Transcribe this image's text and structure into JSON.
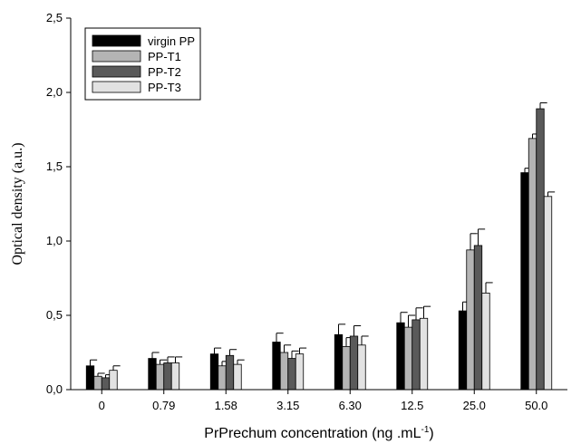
{
  "chart_data": {
    "type": "bar",
    "xlabel": "PrPrechum concentration (ng .mL",
    "xlabel_sup": "-1",
    "xlabel_end": ")",
    "ylabel": "Optical density (a.u.)",
    "ylim": [
      0,
      2.5
    ],
    "yticks": [
      "0,0",
      "0,5",
      "1,0",
      "1,5",
      "2,0",
      "2,5"
    ],
    "ytick_values": [
      0,
      0.5,
      1.0,
      1.5,
      2.0,
      2.5
    ],
    "categories": [
      "0",
      "0.79",
      "1.58",
      "3.15",
      "6.30",
      "12.5",
      "25.0",
      "50.0"
    ],
    "legend_position": "top-left",
    "grid": false,
    "series": [
      {
        "name": "virgin PP",
        "color": "#000000",
        "values": [
          0.16,
          0.21,
          0.24,
          0.32,
          0.37,
          0.45,
          0.53,
          1.46
        ],
        "errors": [
          0.04,
          0.04,
          0.04,
          0.06,
          0.07,
          0.07,
          0.06,
          0.03
        ]
      },
      {
        "name": "PP-T1",
        "color": "#b4b4b4",
        "values": [
          0.09,
          0.17,
          0.16,
          0.25,
          0.29,
          0.42,
          0.94,
          1.69
        ],
        "errors": [
          0.02,
          0.03,
          0.03,
          0.05,
          0.06,
          0.08,
          0.11,
          0.03
        ]
      },
      {
        "name": "PP-T2",
        "color": "#5a5a5a",
        "values": [
          0.08,
          0.18,
          0.23,
          0.21,
          0.36,
          0.47,
          0.97,
          1.89
        ],
        "errors": [
          0.02,
          0.04,
          0.04,
          0.05,
          0.07,
          0.08,
          0.11,
          0.04
        ]
      },
      {
        "name": "PP-T3",
        "color": "#e2e2e2",
        "values": [
          0.13,
          0.18,
          0.17,
          0.24,
          0.3,
          0.48,
          0.65,
          1.3
        ],
        "errors": [
          0.03,
          0.04,
          0.03,
          0.04,
          0.06,
          0.08,
          0.07,
          0.03
        ]
      }
    ]
  }
}
